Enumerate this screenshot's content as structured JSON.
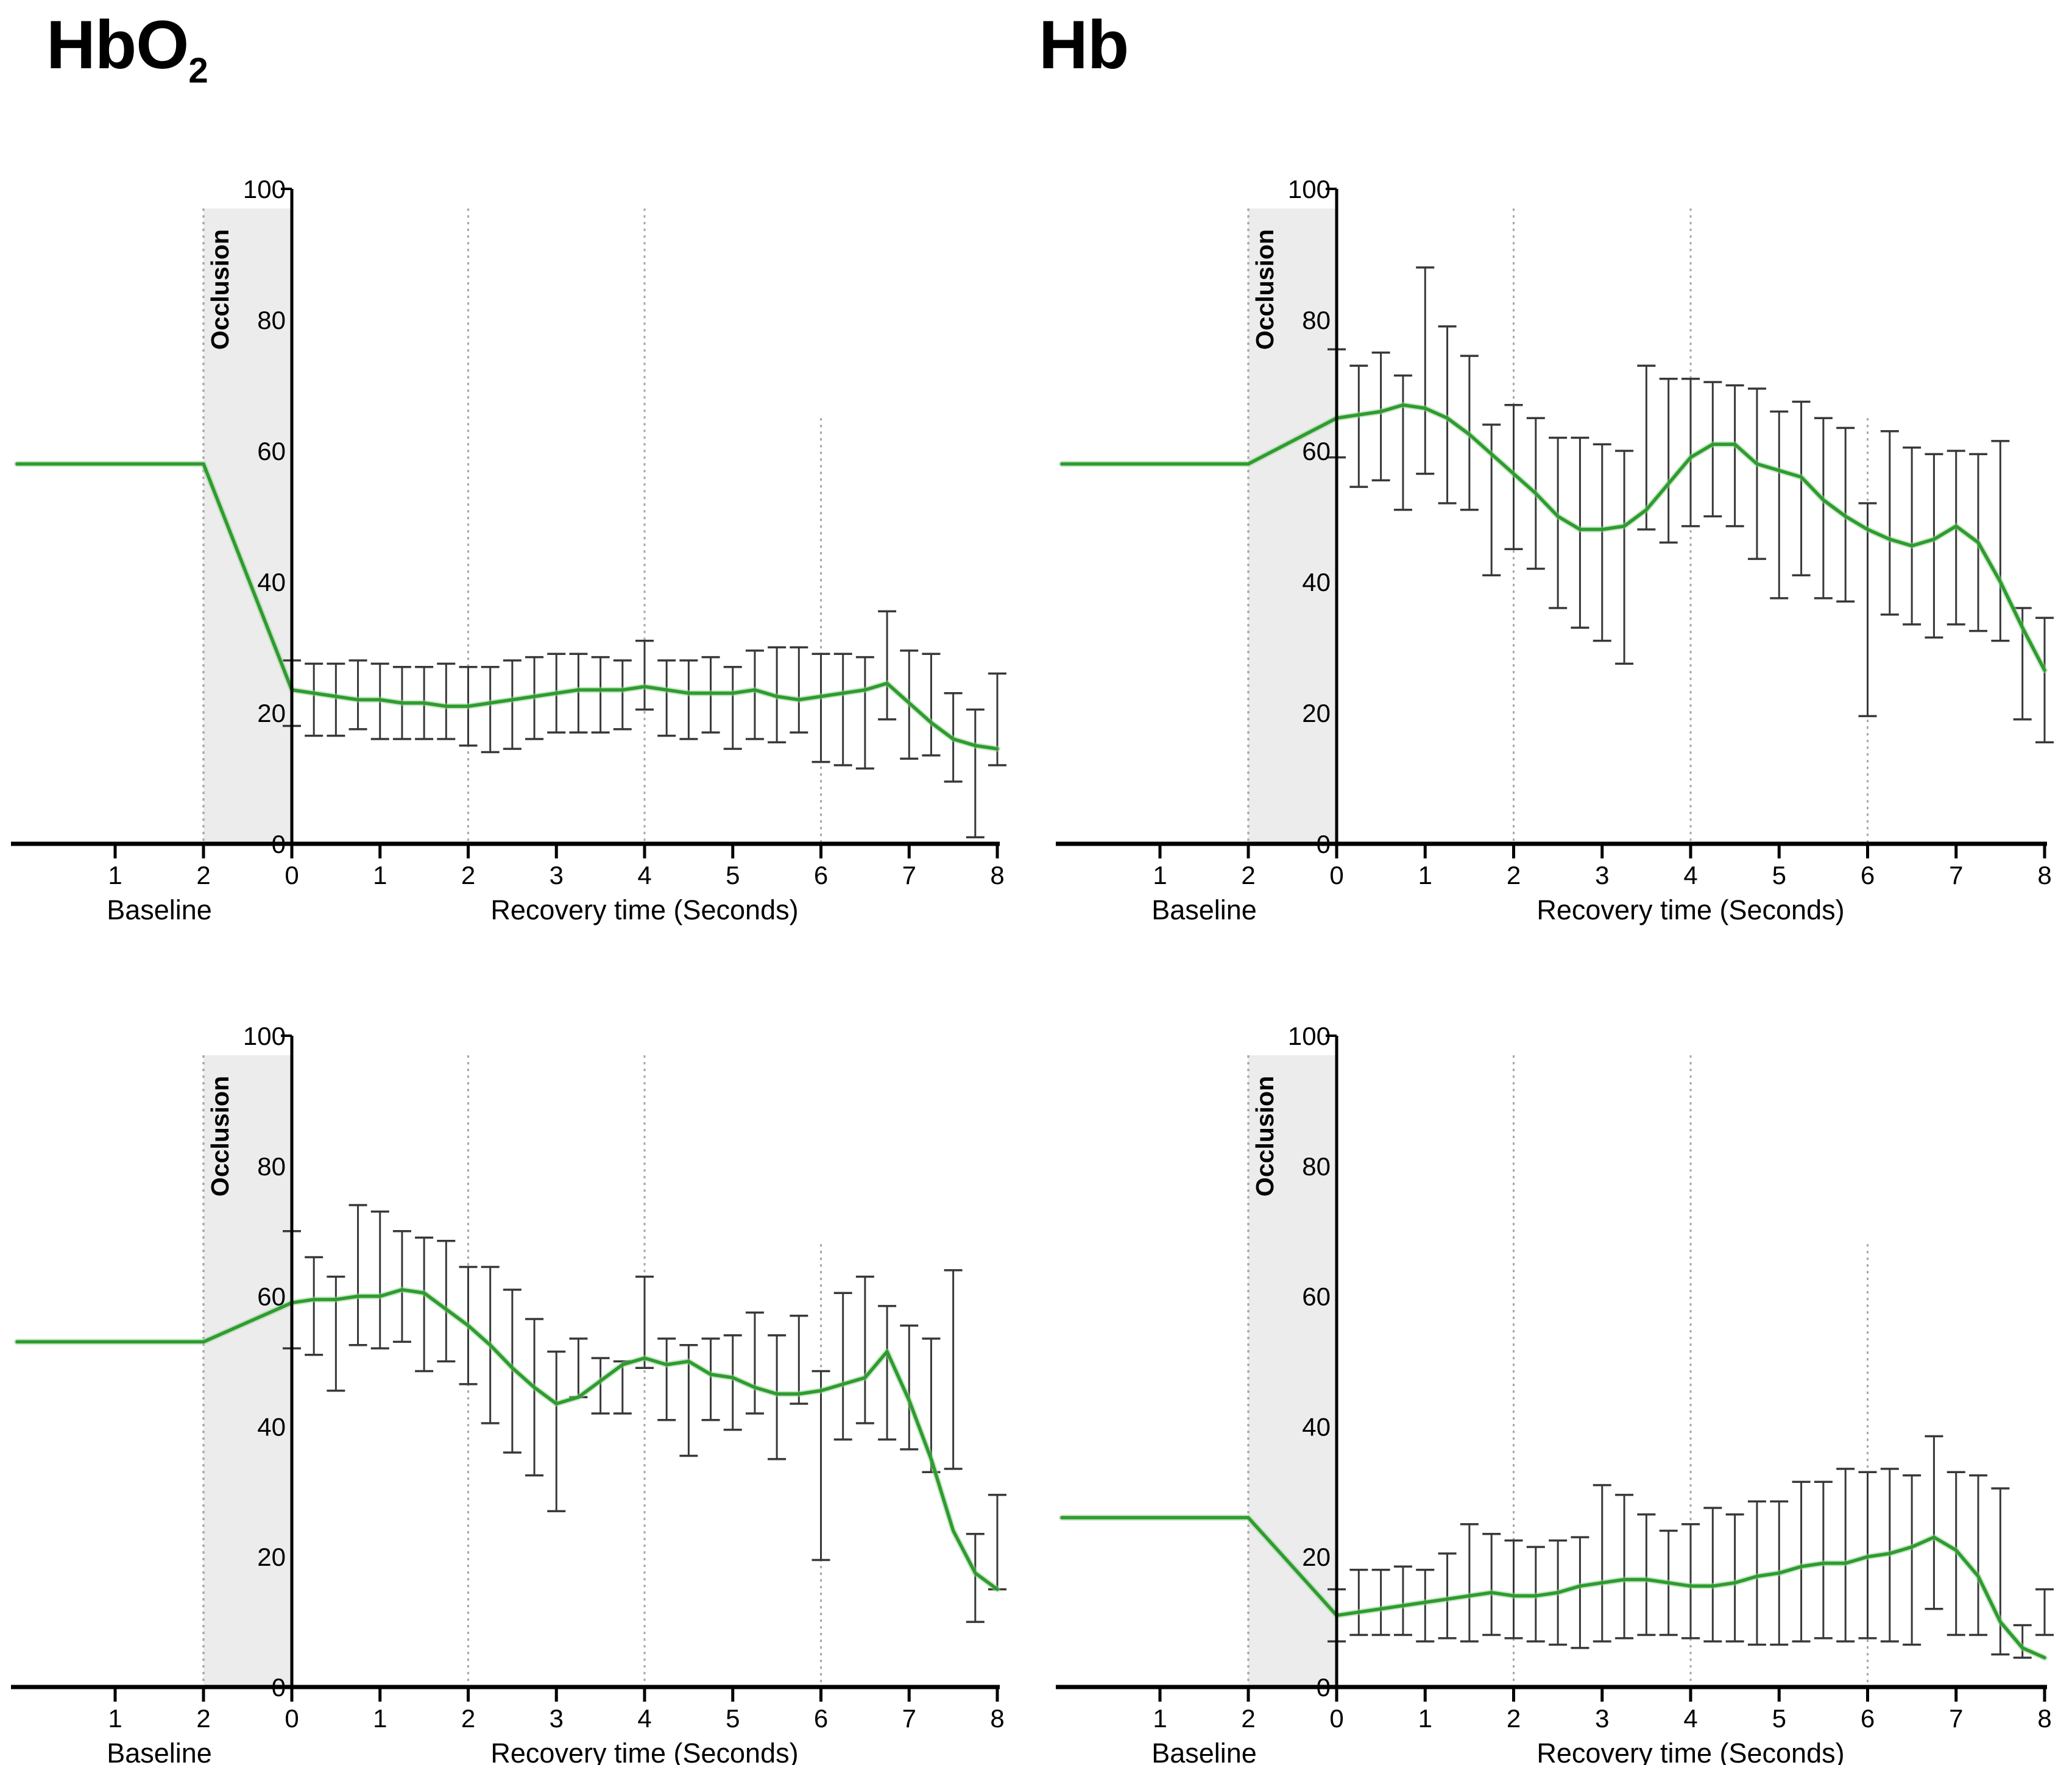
{
  "figure": {
    "titles": [
      {
        "text": "HbO",
        "sub": "2"
      },
      {
        "text": "Hb",
        "sub": ""
      }
    ],
    "colors": {
      "line": "#2e9c2e",
      "line_halo": "#99cf99",
      "error_bar": "#383838",
      "occlusion_band": "#ececec",
      "grid_dotted": "#a6a6a6",
      "axis": "#000000"
    }
  },
  "chart_data": [
    {
      "type": "line",
      "column_label": "HbO2",
      "occlusion_label": "Occlusion",
      "baseline_label": "Baseline",
      "xlabel": "Recovery time (Seconds)",
      "ylim": [
        0,
        100
      ],
      "y_ticks": [
        0,
        20,
        40,
        60,
        80,
        100
      ],
      "baseline_ticks": [
        1,
        2
      ],
      "recovery_ticks": [
        0,
        1,
        2,
        3,
        4,
        5,
        6,
        7,
        8
      ],
      "band_top": 97,
      "gridlines": [
        {
          "t": 2,
          "top": 97
        },
        {
          "t": 4,
          "top": 97
        },
        {
          "t": 6,
          "top": 65
        }
      ],
      "baseline_value": 58,
      "x": [
        0,
        0.25,
        0.5,
        0.75,
        1,
        1.25,
        1.5,
        1.75,
        2,
        2.25,
        2.5,
        2.75,
        3,
        3.25,
        3.5,
        3.75,
        4,
        4.25,
        4.5,
        4.75,
        5,
        5.25,
        5.5,
        5.75,
        6,
        6.25,
        6.5,
        6.75,
        7,
        7.25,
        7.5,
        7.75,
        8
      ],
      "mean": [
        23.5,
        23,
        22.5,
        22,
        22,
        21.5,
        21.5,
        21,
        21,
        21.5,
        22,
        22.5,
        23,
        23.5,
        23.5,
        23.5,
        24,
        23.5,
        23,
        23,
        23,
        23.5,
        22.5,
        22,
        22.5,
        23,
        23.5,
        24.5,
        21.5,
        18.5,
        16,
        15,
        14.5
      ],
      "upper": [
        28,
        27.5,
        27.5,
        28,
        27.5,
        27,
        27,
        27.5,
        27,
        27,
        28,
        28.5,
        29,
        29,
        28.5,
        28,
        31,
        28,
        28,
        28.5,
        27,
        29.5,
        30,
        30,
        29,
        29,
        28.5,
        35.5,
        29.5,
        29,
        23,
        20.5,
        26
      ],
      "lower": [
        18,
        16.5,
        16.5,
        17.5,
        16,
        16,
        16,
        16,
        15,
        14,
        14.5,
        16,
        17,
        17,
        17,
        17.5,
        20.5,
        16.5,
        16,
        17,
        14.5,
        16,
        15.5,
        17,
        12.5,
        12,
        11.5,
        19,
        13,
        13.5,
        9.5,
        1,
        12
      ]
    },
    {
      "type": "line",
      "column_label": "Hb",
      "occlusion_label": "Occlusion",
      "baseline_label": "Baseline",
      "xlabel": "Recovery time (Seconds)",
      "ylim": [
        0,
        100
      ],
      "y_ticks": [
        0,
        20,
        40,
        60,
        80,
        100
      ],
      "baseline_ticks": [
        1,
        2
      ],
      "recovery_ticks": [
        0,
        1,
        2,
        3,
        4,
        5,
        6,
        7,
        8
      ],
      "band_top": 97,
      "gridlines": [
        {
          "t": 2,
          "top": 97
        },
        {
          "t": 4,
          "top": 97
        },
        {
          "t": 6,
          "top": 65
        }
      ],
      "baseline_value": 58,
      "x": [
        0,
        0.25,
        0.5,
        0.75,
        1,
        1.25,
        1.5,
        1.75,
        2,
        2.25,
        2.5,
        2.75,
        3,
        3.25,
        3.5,
        3.75,
        4,
        4.25,
        4.5,
        4.75,
        5,
        5.25,
        5.5,
        5.75,
        6,
        6.25,
        6.5,
        6.75,
        7,
        7.25,
        7.5,
        7.75,
        8
      ],
      "mean": [
        65,
        65.5,
        66,
        67,
        66.5,
        65,
        62.5,
        59.5,
        56.5,
        53.5,
        50,
        48,
        48,
        48.5,
        51,
        55,
        59,
        61,
        61,
        58,
        57,
        56,
        52.5,
        50,
        48,
        46.5,
        45.5,
        46.5,
        48.5,
        46,
        40,
        33,
        26.5
      ],
      "upper": [
        75.5,
        73,
        75,
        71.5,
        88,
        79,
        74.5,
        64,
        67,
        65,
        62,
        62,
        61,
        60,
        73,
        71,
        71,
        70.5,
        70,
        69.5,
        66,
        67.5,
        65,
        63.5,
        52,
        63,
        60.5,
        59.5,
        60,
        59.5,
        61.5,
        36,
        34.5
      ],
      "lower": [
        59,
        54.5,
        55.5,
        51,
        56.5,
        52,
        51,
        41,
        45,
        42,
        36,
        33,
        31,
        27.5,
        48,
        46,
        48.5,
        50,
        48.5,
        43.5,
        37.5,
        41,
        37.5,
        37,
        19.5,
        35,
        33.5,
        31.5,
        33.5,
        32.5,
        31,
        19,
        15.5
      ]
    },
    {
      "type": "line",
      "column_label": "HbO2",
      "occlusion_label": "Occlusion",
      "baseline_label": "Baseline",
      "xlabel": "Recovery time (Seconds)",
      "ylim": [
        0,
        100
      ],
      "y_ticks": [
        0,
        20,
        40,
        60,
        80,
        100
      ],
      "baseline_ticks": [
        1,
        2
      ],
      "recovery_ticks": [
        0,
        1,
        2,
        3,
        4,
        5,
        6,
        7,
        8
      ],
      "band_top": 97,
      "gridlines": [
        {
          "t": 2,
          "top": 97
        },
        {
          "t": 4,
          "top": 97
        },
        {
          "t": 6,
          "top": 68
        }
      ],
      "baseline_value": 53,
      "x": [
        0,
        0.25,
        0.5,
        0.75,
        1,
        1.25,
        1.5,
        1.75,
        2,
        2.25,
        2.5,
        2.75,
        3,
        3.25,
        3.5,
        3.75,
        4,
        4.25,
        4.5,
        4.75,
        5,
        5.25,
        5.5,
        5.75,
        6,
        6.25,
        6.5,
        6.75,
        7,
        7.25,
        7.5,
        7.75,
        8
      ],
      "mean": [
        59,
        59.5,
        59.5,
        60,
        60,
        61,
        60.5,
        58,
        55.5,
        52.5,
        49,
        46,
        43.5,
        44.5,
        47,
        49.5,
        50.5,
        49.5,
        50,
        48,
        47.5,
        46,
        45,
        45,
        45.5,
        46.5,
        47.5,
        51.5,
        44,
        35,
        24,
        17.5,
        15
      ],
      "upper": [
        70,
        66,
        63,
        74,
        73,
        70,
        69,
        68.5,
        64.5,
        64.5,
        61,
        56.5,
        51.5,
        53.5,
        50.5,
        50,
        63,
        53.5,
        52.5,
        53.5,
        54,
        57.5,
        54,
        57,
        48.5,
        60.5,
        63,
        58.5,
        55.5,
        53.5,
        64,
        23.5,
        29.5
      ],
      "lower": [
        52,
        51,
        45.5,
        52.5,
        52,
        53,
        48.5,
        50,
        46.5,
        40.5,
        36,
        32.5,
        27,
        44.5,
        42,
        42,
        49,
        41,
        35.5,
        41,
        39.5,
        42,
        35,
        43.5,
        19.5,
        38,
        40.5,
        38,
        36.5,
        33,
        33.5,
        10,
        15
      ]
    },
    {
      "type": "line",
      "column_label": "Hb",
      "occlusion_label": "Occlusion",
      "baseline_label": "Baseline",
      "xlabel": "Recovery time (Seconds)",
      "ylim": [
        0,
        100
      ],
      "y_ticks": [
        0,
        20,
        40,
        60,
        80,
        100
      ],
      "baseline_ticks": [
        1,
        2
      ],
      "recovery_ticks": [
        0,
        1,
        2,
        3,
        4,
        5,
        6,
        7,
        8
      ],
      "band_top": 97,
      "gridlines": [
        {
          "t": 2,
          "top": 97
        },
        {
          "t": 4,
          "top": 97
        },
        {
          "t": 6,
          "top": 68
        }
      ],
      "baseline_value": 26,
      "x": [
        0,
        0.25,
        0.5,
        0.75,
        1,
        1.25,
        1.5,
        1.75,
        2,
        2.25,
        2.5,
        2.75,
        3,
        3.25,
        3.5,
        3.75,
        4,
        4.25,
        4.5,
        4.75,
        5,
        5.25,
        5.5,
        5.75,
        6,
        6.25,
        6.5,
        6.75,
        7,
        7.25,
        7.5,
        7.75,
        8
      ],
      "mean": [
        11,
        11.5,
        12,
        12.5,
        13,
        13.5,
        14,
        14.5,
        14,
        14,
        14.5,
        15.5,
        16,
        16.5,
        16.5,
        16,
        15.5,
        15.5,
        16,
        17,
        17.5,
        18.5,
        19,
        19,
        20,
        20.5,
        21.5,
        23,
        21,
        17,
        10,
        6,
        4.5
      ],
      "upper": [
        15,
        18,
        18,
        18.5,
        18,
        20.5,
        25,
        23.5,
        22.5,
        21.5,
        22.5,
        23,
        31,
        29.5,
        26.5,
        24,
        25,
        27.5,
        26.5,
        28.5,
        28.5,
        31.5,
        31.5,
        33.5,
        33,
        33.5,
        32.5,
        38.5,
        33,
        32.5,
        30.5,
        9.5,
        15
      ],
      "lower": [
        7,
        8,
        8,
        8,
        7,
        7.5,
        7,
        8,
        7.5,
        7,
        6.5,
        6,
        7,
        7.5,
        8,
        8,
        7.5,
        7,
        7,
        6.5,
        6.5,
        7,
        7.5,
        7,
        7.5,
        7,
        6.5,
        12,
        8,
        8,
        5,
        4.5,
        8
      ]
    }
  ]
}
